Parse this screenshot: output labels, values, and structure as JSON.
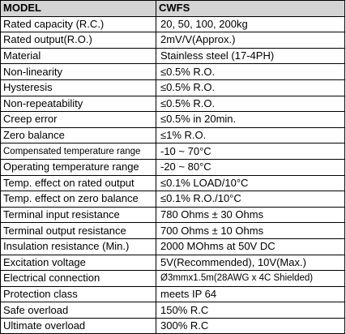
{
  "header": {
    "model_label": "MODEL",
    "model_value": "CWFS"
  },
  "rows": [
    {
      "param": "Rated capacity (R.C.)",
      "value": "20, 50, 100, 200kg"
    },
    {
      "param": "Rated output(R.O.)",
      "value": "2mV/V(Approx.)"
    },
    {
      "param": "Material",
      "value": "Stainless steel (17-4PH)"
    },
    {
      "param": "Non-linearity",
      "value": "≤0.5% R.O."
    },
    {
      "param": "Hysteresis",
      "value": "≤0.5% R.O."
    },
    {
      "param": "Non-repeatability",
      "value": "≤0.5% R.O."
    },
    {
      "param": "Creep error",
      "value": "≤0.5% in 20min."
    },
    {
      "param": "Zero balance",
      "value": "≤1% R.O."
    },
    {
      "param": "Compensated temperature range",
      "value": "-10 ~ 70°C"
    },
    {
      "param": "Operating temperature range",
      "value": "-20 ~ 80°C"
    },
    {
      "param": "Temp. effect on rated output",
      "value": "≤0.1% LOAD/10°C"
    },
    {
      "param": "Temp. effect on zero balance",
      "value": "≤0.1% R.O./10°C"
    },
    {
      "param": "Terminal input resistance",
      "value": "780 Ohms ± 30 Ohms"
    },
    {
      "param": "Terminal output resistance",
      "value": "700 Ohms ± 10 Ohms"
    },
    {
      "param": "Insulation resistance (Min.)",
      "value": "2000 MOhms at 50V DC"
    },
    {
      "param": "Excitation voltage",
      "value": "5V(Recommended), 10V(Max.)"
    },
    {
      "param": "Electrical connection",
      "value": "Ø3mmx1.5m(28AWG x 4C Shielded)"
    },
    {
      "param": "Protection class",
      "value": "meets IP 64"
    },
    {
      "param": "Safe overload",
      "value": "150% R.C"
    },
    {
      "param": "Ultimate overload",
      "value": "300% R.C"
    }
  ]
}
